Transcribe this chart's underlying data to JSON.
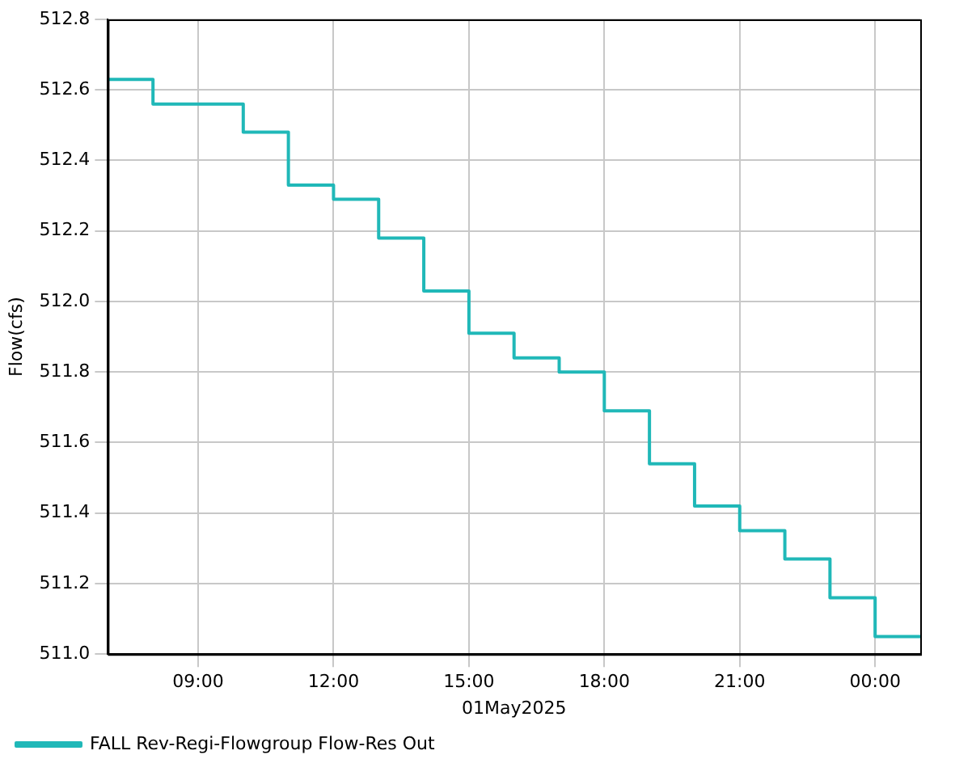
{
  "chart_data": {
    "type": "step",
    "ylabel": "Flow(cfs)",
    "xlabel": "01May2025",
    "x": [
      7,
      8,
      9,
      10,
      11,
      12,
      13,
      14,
      15,
      16,
      17,
      18,
      19,
      20,
      21,
      22,
      23,
      24,
      25
    ],
    "series": [
      {
        "name": "FALL Rev-Regi-Flowgroup Flow-Res Out",
        "color": "#20b8b8",
        "values": [
          512.63,
          512.56,
          512.56,
          512.48,
          512.33,
          512.29,
          512.18,
          512.03,
          511.91,
          511.84,
          511.8,
          511.69,
          511.54,
          511.42,
          511.35,
          511.27,
          511.16,
          511.05,
          511.05
        ]
      }
    ],
    "xlim": [
      7,
      25
    ],
    "xticks": [
      {
        "value": 9,
        "label": "09:00"
      },
      {
        "value": 12,
        "label": "12:00"
      },
      {
        "value": 15,
        "label": "15:00"
      },
      {
        "value": 18,
        "label": "18:00"
      },
      {
        "value": 21,
        "label": "21:00"
      },
      {
        "value": 24,
        "label": "00:00"
      }
    ],
    "ylim": [
      511,
      512.8
    ],
    "yticks": [
      {
        "value": 511,
        "label": "511.0"
      },
      {
        "value": 511.2,
        "label": "511.2"
      },
      {
        "value": 511.4,
        "label": "511.4"
      },
      {
        "value": 511.6,
        "label": "511.6"
      },
      {
        "value": 511.8,
        "label": "511.8"
      },
      {
        "value": 512,
        "label": "512.0"
      },
      {
        "value": 512.2,
        "label": "512.2"
      },
      {
        "value": 512.4,
        "label": "512.4"
      },
      {
        "value": 512.6,
        "label": "512.6"
      },
      {
        "value": 512.8,
        "label": "512.8"
      }
    ],
    "grid": true,
    "legend": "bottom left",
    "marker": "none",
    "line_style": "solid"
  }
}
